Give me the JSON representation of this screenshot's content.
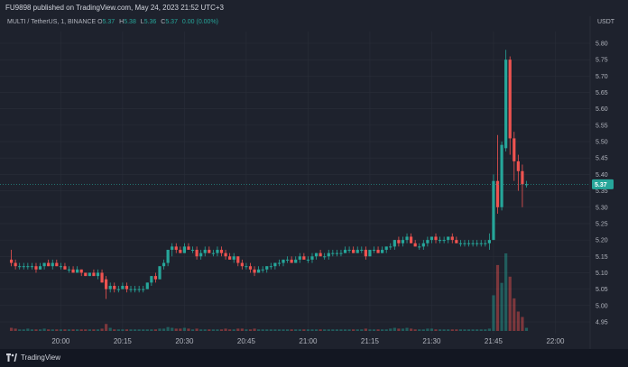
{
  "header": {
    "publisher_line": "FU9898 published on TradingView.com, May 24, 2023 21:52 UTC+3"
  },
  "legend": {
    "symbol": "MULTI / TetherUS, 1, BINANCE",
    "open_label": "O",
    "open": "5.37",
    "high_label": "H",
    "high": "5.38",
    "low_label": "L",
    "low": "5.36",
    "close_label": "C",
    "close": "5.37",
    "change": "0.00 (0.00%)"
  },
  "footer": {
    "brand": "TradingView"
  },
  "colors": {
    "background": "#1e222d",
    "up": "#26a69a",
    "down": "#ef5350",
    "grid": "#2a2e39",
    "text": "#b2b5be"
  },
  "chart_data": {
    "type": "candlestick",
    "currency": "USDT",
    "last_price_label": "5.37",
    "y_ticks": [
      "5.80",
      "5.75",
      "5.70",
      "5.65",
      "5.60",
      "5.55",
      "5.50",
      "5.45",
      "5.40",
      "5.35",
      "5.30",
      "5.25",
      "5.20",
      "5.15",
      "5.10",
      "5.05",
      "5.00",
      "4.95"
    ],
    "ylim": [
      4.95,
      5.8
    ],
    "x_ticks": [
      "20:00",
      "20:15",
      "20:30",
      "20:45",
      "21:00",
      "21:15",
      "21:30",
      "21:45",
      "22:00"
    ],
    "x_tick_minutes": [
      0,
      15,
      30,
      45,
      60,
      75,
      90,
      105,
      120
    ],
    "xlim_minutes": [
      -13,
      128
    ],
    "grid": true,
    "candles": [
      [
        -12,
        5.14,
        5.17,
        5.12,
        5.13
      ],
      [
        -11,
        5.13,
        5.14,
        5.11,
        5.12
      ],
      [
        -10,
        5.12,
        5.13,
        5.11,
        5.12
      ],
      [
        -9,
        5.12,
        5.13,
        5.11,
        5.12
      ],
      [
        -8,
        5.12,
        5.13,
        5.11,
        5.12
      ],
      [
        -7,
        5.12,
        5.13,
        5.11,
        5.12
      ],
      [
        -6,
        5.12,
        5.13,
        5.1,
        5.11
      ],
      [
        -5,
        5.11,
        5.13,
        5.11,
        5.12
      ],
      [
        -4,
        5.12,
        5.13,
        5.11,
        5.13
      ],
      [
        -3,
        5.13,
        5.14,
        5.12,
        5.12
      ],
      [
        -2,
        5.12,
        5.14,
        5.11,
        5.13
      ],
      [
        -1,
        5.13,
        5.14,
        5.12,
        5.12
      ],
      [
        0,
        5.12,
        5.13,
        5.11,
        5.12
      ],
      [
        1,
        5.12,
        5.13,
        5.11,
        5.11
      ],
      [
        2,
        5.11,
        5.12,
        5.1,
        5.11
      ],
      [
        3,
        5.11,
        5.12,
        5.1,
        5.1
      ],
      [
        4,
        5.1,
        5.12,
        5.1,
        5.11
      ],
      [
        5,
        5.11,
        5.11,
        5.09,
        5.1
      ],
      [
        6,
        5.1,
        5.1,
        5.09,
        5.09
      ],
      [
        7,
        5.09,
        5.1,
        5.09,
        5.1
      ],
      [
        8,
        5.1,
        5.11,
        5.09,
        5.09
      ],
      [
        9,
        5.09,
        5.11,
        5.08,
        5.1
      ],
      [
        10,
        5.1,
        5.11,
        5.07,
        5.07
      ],
      [
        11,
        5.08,
        5.09,
        5.02,
        5.05
      ],
      [
        12,
        5.05,
        5.07,
        5.04,
        5.06
      ],
      [
        13,
        5.06,
        5.07,
        5.04,
        5.05
      ],
      [
        14,
        5.05,
        5.06,
        5.04,
        5.05
      ],
      [
        15,
        5.05,
        5.07,
        5.05,
        5.06
      ],
      [
        16,
        5.06,
        5.07,
        5.04,
        5.05
      ],
      [
        17,
        5.05,
        5.06,
        5.04,
        5.05
      ],
      [
        18,
        5.05,
        5.06,
        5.04,
        5.05
      ],
      [
        19,
        5.05,
        5.06,
        5.04,
        5.05
      ],
      [
        20,
        5.05,
        5.06,
        5.04,
        5.05
      ],
      [
        21,
        5.05,
        5.07,
        5.05,
        5.07
      ],
      [
        22,
        5.07,
        5.09,
        5.06,
        5.09
      ],
      [
        23,
        5.09,
        5.1,
        5.07,
        5.08
      ],
      [
        24,
        5.08,
        5.12,
        5.08,
        5.12
      ],
      [
        25,
        5.12,
        5.14,
        5.11,
        5.13
      ],
      [
        26,
        5.13,
        5.17,
        5.12,
        5.17
      ],
      [
        27,
        5.17,
        5.19,
        5.15,
        5.18
      ],
      [
        28,
        5.18,
        5.19,
        5.16,
        5.17
      ],
      [
        29,
        5.17,
        5.18,
        5.16,
        5.16
      ],
      [
        30,
        5.16,
        5.19,
        5.16,
        5.18
      ],
      [
        31,
        5.18,
        5.19,
        5.17,
        5.17
      ],
      [
        32,
        5.17,
        5.18,
        5.16,
        5.17
      ],
      [
        33,
        5.17,
        5.18,
        5.14,
        5.15
      ],
      [
        34,
        5.15,
        5.17,
        5.14,
        5.16
      ],
      [
        35,
        5.16,
        5.18,
        5.15,
        5.17
      ],
      [
        36,
        5.17,
        5.18,
        5.16,
        5.16
      ],
      [
        37,
        5.16,
        5.17,
        5.15,
        5.16
      ],
      [
        38,
        5.16,
        5.18,
        5.15,
        5.17
      ],
      [
        39,
        5.17,
        5.18,
        5.15,
        5.16
      ],
      [
        40,
        5.16,
        5.17,
        5.14,
        5.15
      ],
      [
        41,
        5.15,
        5.16,
        5.14,
        5.14
      ],
      [
        42,
        5.14,
        5.16,
        5.13,
        5.15
      ],
      [
        43,
        5.15,
        5.15,
        5.12,
        5.13
      ],
      [
        44,
        5.13,
        5.14,
        5.11,
        5.12
      ],
      [
        45,
        5.12,
        5.13,
        5.11,
        5.12
      ],
      [
        46,
        5.12,
        5.13,
        5.1,
        5.11
      ],
      [
        47,
        5.11,
        5.12,
        5.09,
        5.1
      ],
      [
        48,
        5.1,
        5.12,
        5.1,
        5.11
      ],
      [
        49,
        5.11,
        5.12,
        5.1,
        5.11
      ],
      [
        50,
        5.11,
        5.12,
        5.1,
        5.12
      ],
      [
        51,
        5.12,
        5.13,
        5.11,
        5.12
      ],
      [
        52,
        5.12,
        5.13,
        5.11,
        5.13
      ],
      [
        53,
        5.13,
        5.14,
        5.12,
        5.13
      ],
      [
        54,
        5.13,
        5.14,
        5.12,
        5.14
      ],
      [
        55,
        5.14,
        5.15,
        5.13,
        5.14
      ],
      [
        56,
        5.14,
        5.15,
        5.13,
        5.13
      ],
      [
        57,
        5.13,
        5.15,
        5.13,
        5.14
      ],
      [
        58,
        5.14,
        5.16,
        5.13,
        5.15
      ],
      [
        59,
        5.15,
        5.16,
        5.14,
        5.14
      ],
      [
        60,
        5.14,
        5.15,
        5.13,
        5.14
      ],
      [
        61,
        5.14,
        5.16,
        5.13,
        5.15
      ],
      [
        62,
        5.15,
        5.16,
        5.14,
        5.16
      ],
      [
        63,
        5.16,
        5.17,
        5.15,
        5.15
      ],
      [
        64,
        5.15,
        5.16,
        5.14,
        5.15
      ],
      [
        65,
        5.15,
        5.17,
        5.14,
        5.16
      ],
      [
        66,
        5.16,
        5.17,
        5.15,
        5.16
      ],
      [
        67,
        5.16,
        5.17,
        5.15,
        5.16
      ],
      [
        68,
        5.16,
        5.17,
        5.15,
        5.16
      ],
      [
        69,
        5.16,
        5.18,
        5.16,
        5.17
      ],
      [
        70,
        5.17,
        5.18,
        5.16,
        5.17
      ],
      [
        71,
        5.17,
        5.18,
        5.16,
        5.16
      ],
      [
        72,
        5.16,
        5.18,
        5.16,
        5.17
      ],
      [
        73,
        5.17,
        5.18,
        5.16,
        5.17
      ],
      [
        74,
        5.17,
        5.18,
        5.14,
        5.15
      ],
      [
        75,
        5.15,
        5.17,
        5.15,
        5.17
      ],
      [
        76,
        5.17,
        5.18,
        5.16,
        5.17
      ],
      [
        77,
        5.17,
        5.18,
        5.16,
        5.16
      ],
      [
        78,
        5.16,
        5.18,
        5.16,
        5.17
      ],
      [
        79,
        5.17,
        5.18,
        5.16,
        5.18
      ],
      [
        80,
        5.18,
        5.19,
        5.17,
        5.18
      ],
      [
        81,
        5.18,
        5.2,
        5.17,
        5.2
      ],
      [
        82,
        5.2,
        5.21,
        5.18,
        5.19
      ],
      [
        83,
        5.19,
        5.21,
        5.18,
        5.2
      ],
      [
        84,
        5.2,
        5.22,
        5.19,
        5.21
      ],
      [
        85,
        5.21,
        5.22,
        5.19,
        5.19
      ],
      [
        86,
        5.19,
        5.2,
        5.18,
        5.18
      ],
      [
        87,
        5.18,
        5.19,
        5.17,
        5.18
      ],
      [
        88,
        5.18,
        5.2,
        5.17,
        5.19
      ],
      [
        89,
        5.19,
        5.21,
        5.18,
        5.2
      ],
      [
        90,
        5.2,
        5.21,
        5.19,
        5.21
      ],
      [
        91,
        5.21,
        5.22,
        5.19,
        5.2
      ],
      [
        92,
        5.2,
        5.21,
        5.19,
        5.2
      ],
      [
        93,
        5.2,
        5.21,
        5.19,
        5.2
      ],
      [
        94,
        5.2,
        5.21,
        5.19,
        5.21
      ],
      [
        95,
        5.21,
        5.22,
        5.19,
        5.2
      ],
      [
        96,
        5.2,
        5.21,
        5.19,
        5.19
      ],
      [
        97,
        5.19,
        5.2,
        5.18,
        5.19
      ],
      [
        98,
        5.19,
        5.2,
        5.18,
        5.19
      ],
      [
        99,
        5.19,
        5.2,
        5.18,
        5.19
      ],
      [
        100,
        5.19,
        5.2,
        5.18,
        5.19
      ],
      [
        101,
        5.19,
        5.2,
        5.18,
        5.19
      ],
      [
        102,
        5.19,
        5.2,
        5.18,
        5.19
      ],
      [
        103,
        5.19,
        5.2,
        5.18,
        5.19
      ],
      [
        104,
        5.19,
        5.22,
        5.17,
        5.2
      ],
      [
        105,
        5.2,
        5.4,
        5.2,
        5.38
      ],
      [
        106,
        5.38,
        5.52,
        5.28,
        5.3
      ],
      [
        107,
        5.3,
        5.5,
        5.29,
        5.49
      ],
      [
        108,
        5.48,
        5.78,
        5.47,
        5.75
      ],
      [
        109,
        5.75,
        5.76,
        5.46,
        5.51
      ],
      [
        110,
        5.51,
        5.53,
        5.38,
        5.44
      ],
      [
        111,
        5.44,
        5.46,
        5.35,
        5.41
      ],
      [
        112,
        5.41,
        5.43,
        5.3,
        5.37
      ],
      [
        113,
        5.37,
        5.38,
        5.36,
        5.37
      ]
    ],
    "volumes": [
      [
        -12,
        0.04
      ],
      [
        -11,
        0.03
      ],
      [
        -10,
        0.02
      ],
      [
        -9,
        0.02
      ],
      [
        -8,
        0.03
      ],
      [
        -7,
        0.02
      ],
      [
        -6,
        0.02
      ],
      [
        -5,
        0.02
      ],
      [
        -4,
        0.03
      ],
      [
        -3,
        0.02
      ],
      [
        -2,
        0.02
      ],
      [
        -1,
        0.02
      ],
      [
        0,
        0.02
      ],
      [
        1,
        0.02
      ],
      [
        2,
        0.02
      ],
      [
        3,
        0.02
      ],
      [
        4,
        0.02
      ],
      [
        5,
        0.02
      ],
      [
        6,
        0.02
      ],
      [
        7,
        0.02
      ],
      [
        8,
        0.02
      ],
      [
        9,
        0.02
      ],
      [
        10,
        0.03
      ],
      [
        11,
        0.09
      ],
      [
        12,
        0.04
      ],
      [
        13,
        0.02
      ],
      [
        14,
        0.02
      ],
      [
        15,
        0.02
      ],
      [
        16,
        0.02
      ],
      [
        17,
        0.02
      ],
      [
        18,
        0.02
      ],
      [
        19,
        0.02
      ],
      [
        20,
        0.02
      ],
      [
        21,
        0.02
      ],
      [
        22,
        0.02
      ],
      [
        23,
        0.02
      ],
      [
        24,
        0.03
      ],
      [
        25,
        0.03
      ],
      [
        26,
        0.05
      ],
      [
        27,
        0.04
      ],
      [
        28,
        0.03
      ],
      [
        29,
        0.03
      ],
      [
        30,
        0.04
      ],
      [
        31,
        0.03
      ],
      [
        32,
        0.02
      ],
      [
        33,
        0.03
      ],
      [
        34,
        0.02
      ],
      [
        35,
        0.02
      ],
      [
        36,
        0.02
      ],
      [
        37,
        0.02
      ],
      [
        38,
        0.02
      ],
      [
        39,
        0.02
      ],
      [
        40,
        0.03
      ],
      [
        41,
        0.02
      ],
      [
        42,
        0.02
      ],
      [
        43,
        0.03
      ],
      [
        44,
        0.03
      ],
      [
        45,
        0.02
      ],
      [
        46,
        0.02
      ],
      [
        47,
        0.03
      ],
      [
        48,
        0.02
      ],
      [
        49,
        0.02
      ],
      [
        50,
        0.02
      ],
      [
        51,
        0.02
      ],
      [
        52,
        0.02
      ],
      [
        53,
        0.02
      ],
      [
        54,
        0.02
      ],
      [
        55,
        0.02
      ],
      [
        56,
        0.02
      ],
      [
        57,
        0.02
      ],
      [
        58,
        0.02
      ],
      [
        59,
        0.02
      ],
      [
        60,
        0.02
      ],
      [
        61,
        0.02
      ],
      [
        62,
        0.02
      ],
      [
        63,
        0.02
      ],
      [
        64,
        0.02
      ],
      [
        65,
        0.02
      ],
      [
        66,
        0.02
      ],
      [
        67,
        0.02
      ],
      [
        68,
        0.02
      ],
      [
        69,
        0.02
      ],
      [
        70,
        0.02
      ],
      [
        71,
        0.02
      ],
      [
        72,
        0.02
      ],
      [
        73,
        0.02
      ],
      [
        74,
        0.03
      ],
      [
        75,
        0.02
      ],
      [
        76,
        0.02
      ],
      [
        77,
        0.02
      ],
      [
        78,
        0.02
      ],
      [
        79,
        0.02
      ],
      [
        80,
        0.03
      ],
      [
        81,
        0.04
      ],
      [
        82,
        0.03
      ],
      [
        83,
        0.03
      ],
      [
        84,
        0.04
      ],
      [
        85,
        0.03
      ],
      [
        86,
        0.02
      ],
      [
        87,
        0.02
      ],
      [
        88,
        0.02
      ],
      [
        89,
        0.03
      ],
      [
        90,
        0.03
      ],
      [
        91,
        0.02
      ],
      [
        92,
        0.02
      ],
      [
        93,
        0.02
      ],
      [
        94,
        0.02
      ],
      [
        95,
        0.02
      ],
      [
        96,
        0.02
      ],
      [
        97,
        0.02
      ],
      [
        98,
        0.02
      ],
      [
        99,
        0.02
      ],
      [
        100,
        0.02
      ],
      [
        101,
        0.02
      ],
      [
        102,
        0.02
      ],
      [
        103,
        0.02
      ],
      [
        104,
        0.03
      ],
      [
        105,
        0.46
      ],
      [
        106,
        0.85
      ],
      [
        107,
        0.62
      ],
      [
        108,
        1.0
      ],
      [
        109,
        0.7
      ],
      [
        110,
        0.42
      ],
      [
        111,
        0.25
      ],
      [
        112,
        0.18
      ],
      [
        113,
        0.04
      ]
    ]
  }
}
